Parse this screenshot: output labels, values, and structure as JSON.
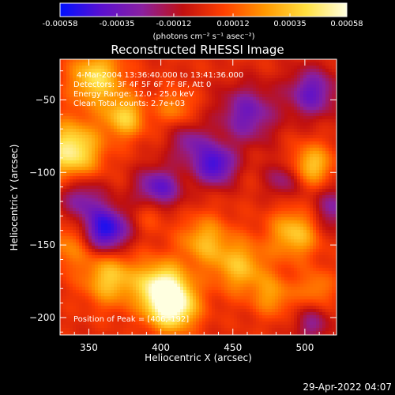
{
  "colorbar": {
    "tick_labels": [
      "-0.00058",
      "-0.00035",
      "-0.00012",
      "0.00012",
      "0.00035",
      "0.00058"
    ],
    "tick_values": [
      -0.00058,
      -0.00035,
      -0.00012,
      0.00012,
      0.00035,
      0.00058
    ],
    "range": [
      -0.00058,
      0.00058
    ],
    "units_line": "(photons cm⁻² s⁻¹ asec⁻²)",
    "stops": [
      "#0010ff",
      "#5a10d0",
      "#8a20a0",
      "#c01010",
      "#ff4000",
      "#ff9800",
      "#ffe040",
      "#ffffe0"
    ]
  },
  "chart_data": {
    "type": "heatmap",
    "title": "Reconstructed RHESSI Image",
    "xlabel": "Heliocentric X (arcsec)",
    "ylabel": "Heliocentric Y (arcsec)",
    "xlim": [
      330,
      522
    ],
    "ylim": [
      -212,
      -22
    ],
    "x_ticks": [
      350,
      400,
      450,
      500
    ],
    "y_ticks": [
      -50,
      -100,
      -150,
      -200
    ],
    "x_tick_labels": [
      "350",
      "400",
      "450",
      "500"
    ],
    "y_tick_labels": [
      "−50",
      "−100",
      "−150",
      "−200"
    ],
    "info": [
      "4-Mar-2004 13:36:40.000 to 13:41:36.000",
      "Detectors: 3F 4F 5F 6F 7F 8F, Att 0",
      "Energy Range: 12.0 - 25.0 keV",
      "Clean     Total counts: 2.7e+03"
    ],
    "peak_label": "Position of Peak = [",
    "peak_value": "406,-192]",
    "sources_bright": [
      {
        "x": 408,
        "y": -192,
        "v": 1.0,
        "r": 12
      },
      {
        "x": 338,
        "y": -85,
        "v": 0.85,
        "r": 14
      },
      {
        "x": 355,
        "y": -35,
        "v": 0.7,
        "r": 13
      },
      {
        "x": 375,
        "y": -62,
        "v": 0.62,
        "r": 10
      },
      {
        "x": 365,
        "y": -173,
        "v": 0.62,
        "r": 13
      },
      {
        "x": 400,
        "y": -178,
        "v": 0.75,
        "r": 12
      },
      {
        "x": 455,
        "y": -165,
        "v": 0.55,
        "r": 13
      },
      {
        "x": 493,
        "y": -142,
        "v": 0.6,
        "r": 12
      },
      {
        "x": 505,
        "y": -95,
        "v": 0.6,
        "r": 10
      },
      {
        "x": 430,
        "y": -147,
        "v": 0.5,
        "r": 12
      },
      {
        "x": 395,
        "y": -125,
        "v": 0.4,
        "r": 9
      },
      {
        "x": 337,
        "y": -150,
        "v": 0.35,
        "r": 12
      },
      {
        "x": 410,
        "y": -55,
        "v": 0.35,
        "r": 9
      },
      {
        "x": 478,
        "y": -185,
        "v": 0.4,
        "r": 10
      },
      {
        "x": 508,
        "y": -180,
        "v": 0.35,
        "r": 9
      }
    ],
    "sources_dark": [
      {
        "x": 362,
        "y": -140,
        "v": -0.95,
        "r": 11
      },
      {
        "x": 398,
        "y": -113,
        "v": -0.8,
        "r": 11
      },
      {
        "x": 438,
        "y": -95,
        "v": -0.8,
        "r": 10
      },
      {
        "x": 460,
        "y": -60,
        "v": -0.6,
        "r": 14
      },
      {
        "x": 505,
        "y": -45,
        "v": -0.65,
        "r": 12
      },
      {
        "x": 420,
        "y": -80,
        "v": -0.45,
        "r": 10
      },
      {
        "x": 345,
        "y": -118,
        "v": -0.5,
        "r": 11
      },
      {
        "x": 520,
        "y": -125,
        "v": -0.45,
        "r": 11
      },
      {
        "x": 485,
        "y": -105,
        "v": -0.4,
        "r": 9
      },
      {
        "x": 505,
        "y": -205,
        "v": -0.4,
        "r": 9
      }
    ]
  },
  "timestamp": "29-Apr-2022 04:07"
}
